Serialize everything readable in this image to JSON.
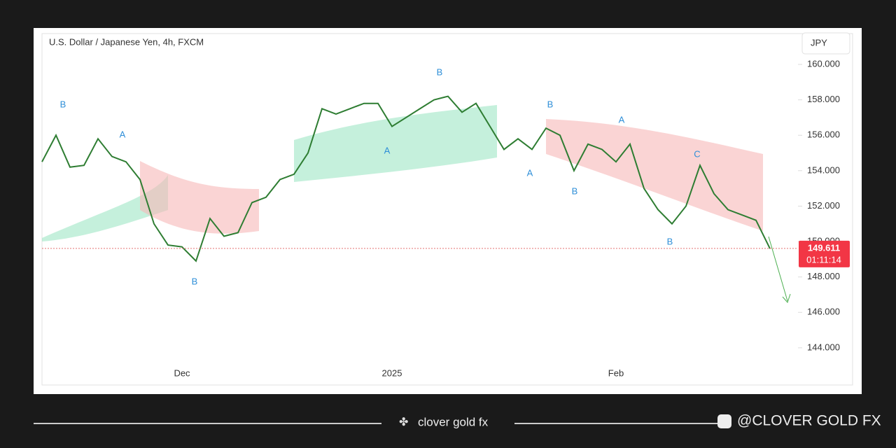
{
  "chart_data": {
    "type": "line",
    "title": "U.S. Dollar / Japanese Yen, 4h, FXCM",
    "currency": "JPY",
    "categories": [
      null,
      null,
      null,
      null,
      null,
      null,
      null,
      null,
      null,
      null,
      "Dec",
      null,
      null,
      null,
      null,
      null,
      null,
      null,
      null,
      null,
      null,
      null,
      null,
      null,
      null,
      "2025",
      null,
      null,
      null,
      null,
      null,
      null,
      null,
      null,
      null,
      null,
      null,
      null,
      null,
      null,
      null,
      "Feb",
      null,
      null,
      null,
      null,
      null,
      null,
      null,
      null,
      null,
      null,
      null
    ],
    "values": [
      154.5,
      156,
      154.2,
      154.3,
      155.8,
      154.8,
      154.5,
      153.5,
      151,
      149.8,
      149.7,
      148.9,
      151.3,
      150.3,
      150.5,
      152.2,
      152.5,
      153.5,
      153.8,
      155,
      157.5,
      157.2,
      157.5,
      157.8,
      157.8,
      156.5,
      157,
      157.5,
      158,
      158.2,
      157.3,
      157.8,
      156.5,
      155.2,
      155.8,
      155.2,
      156.4,
      156,
      154,
      155.5,
      155.2,
      154.5,
      155.5,
      153,
      151.8,
      151,
      152,
      154.3,
      152.7,
      151.8,
      151.5,
      151.2,
      149.6
    ],
    "color": "#2e7d32",
    "ylim": [
      141.9,
      161.74
    ],
    "yticks": [
      {
        "value": 144,
        "label": "144.000"
      },
      {
        "value": 146,
        "label": "146.000"
      },
      {
        "value": 148,
        "label": "148.000"
      },
      {
        "value": 150,
        "label": "150.000"
      },
      {
        "value": 152,
        "label": "152.000"
      },
      {
        "value": 154,
        "label": "154.000"
      },
      {
        "value": 156,
        "label": "156.000"
      },
      {
        "value": 158,
        "label": "158.000"
      },
      {
        "value": 160,
        "label": "160.000"
      }
    ],
    "current_price": {
      "value": 149.611,
      "label": "149.611",
      "countdown": "01:11:14"
    },
    "annotations": [
      "B",
      "A",
      "B",
      "B",
      "A",
      "B",
      "A",
      "B",
      "A",
      "B",
      "C"
    ]
  },
  "footer": {
    "brand": "clover gold fx",
    "handle": "@CLOVER GOLD FX"
  }
}
